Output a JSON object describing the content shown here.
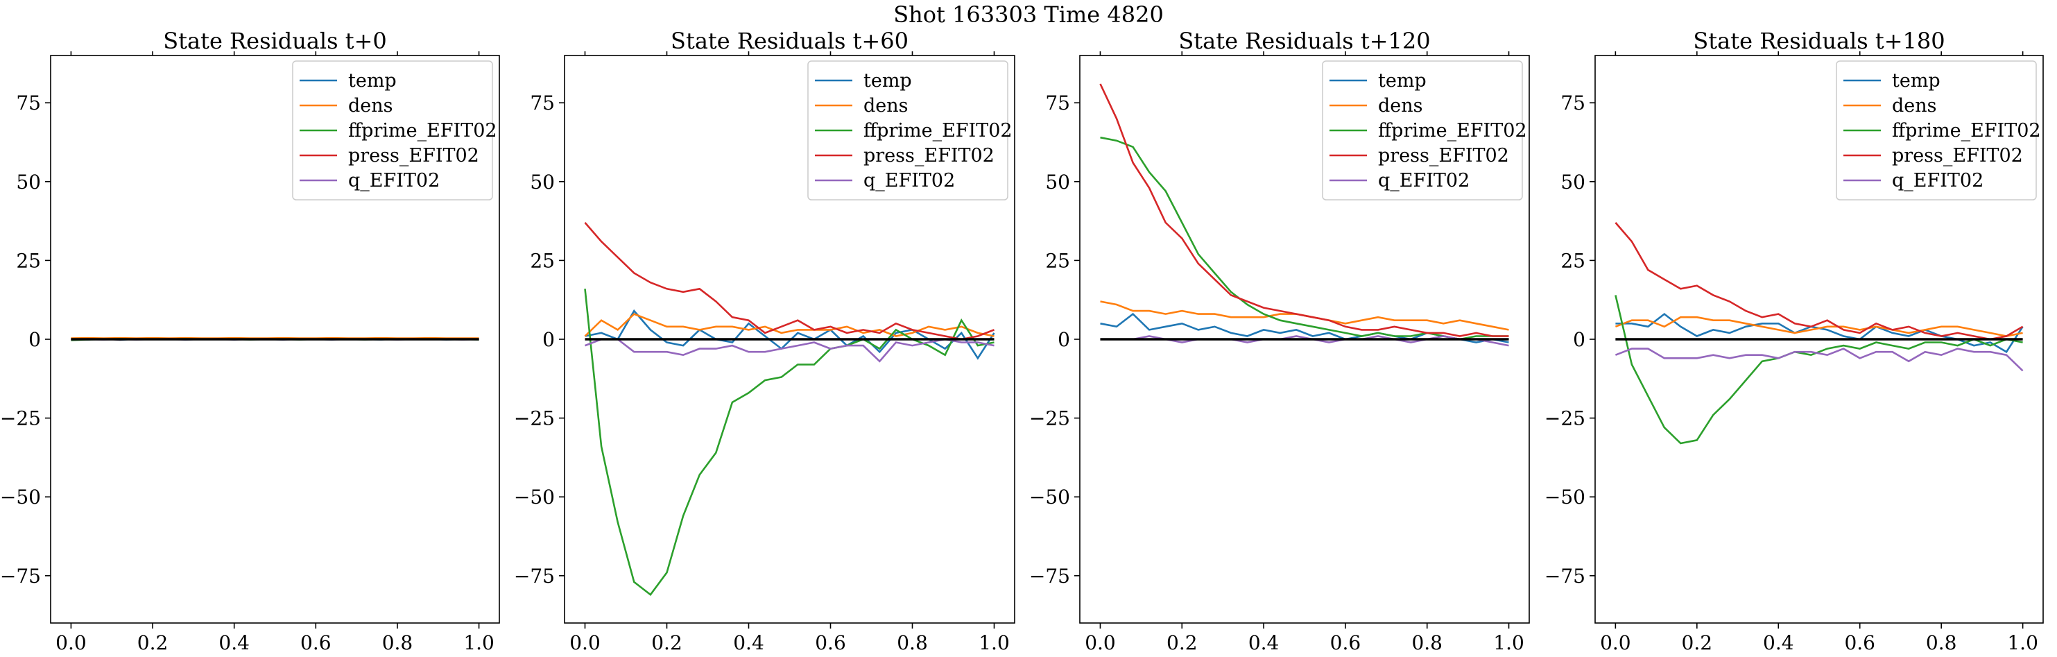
{
  "suptitle": "Shot 163303   Time 4820",
  "colors": {
    "temp": "#1f77b4",
    "dens": "#ff7f0e",
    "ffprime_EFIT02": "#2ca02c",
    "press_EFIT02": "#d62728",
    "q_EFIT02": "#9467bd",
    "zero_line": "#000000"
  },
  "chart_data": [
    {
      "type": "line",
      "title": "State Residuals t+0",
      "xlabel": "",
      "ylabel": "",
      "xlim": [
        -0.05,
        1.05
      ],
      "ylim": [
        -90,
        90
      ],
      "xticks": [
        "0.0",
        "0.2",
        "0.4",
        "0.6",
        "0.8",
        "1.0"
      ],
      "yticks": [
        "−75",
        "−50",
        "−25",
        "0",
        "25",
        "50",
        "75"
      ],
      "legend": {
        "placement": "top-right",
        "entries": [
          "temp",
          "dens",
          "ffprime_EFIT02",
          "press_EFIT02",
          "q_EFIT02"
        ]
      },
      "grid": false,
      "zero_line": true,
      "x": [
        0.0,
        0.04,
        0.08,
        0.12,
        0.16,
        0.2,
        0.24,
        0.28,
        0.32,
        0.36,
        0.4,
        0.44,
        0.48,
        0.52,
        0.56,
        0.6,
        0.64,
        0.68,
        0.72,
        0.76,
        0.8,
        0.84,
        0.88,
        0.92,
        0.96,
        1.0
      ],
      "series": [
        {
          "name": "temp",
          "values": [
            0.1,
            -0.1,
            0.2,
            -0.2,
            0.1,
            0.0,
            0.1,
            -0.1,
            0.0,
            0.1,
            -0.1,
            0.1,
            0.0,
            -0.1,
            0.1,
            0.0,
            -0.1,
            0.1,
            0.0,
            -0.1,
            0.1,
            0.0,
            0.1,
            -0.1,
            0.0,
            0.0
          ]
        },
        {
          "name": "dens",
          "values": [
            0.3,
            0.4,
            0.3,
            0.4,
            0.3,
            0.4,
            0.3,
            0.4,
            0.3,
            0.3,
            0.4,
            0.3,
            0.3,
            0.4,
            0.3,
            0.3,
            0.4,
            0.3,
            0.3,
            0.4,
            0.3,
            0.3,
            0.4,
            0.3,
            0.3,
            0.3
          ]
        },
        {
          "name": "ffprime_EFIT02",
          "values": [
            -0.3,
            -0.1,
            0.0,
            0.1,
            0.0,
            0.0,
            0.0,
            0.1,
            0.0,
            0.0,
            0.0,
            -0.1,
            0.0,
            0.0,
            -0.1,
            0.0,
            0.0,
            0.0,
            -0.1,
            0.0,
            0.0,
            0.0,
            0.0,
            0.0,
            0.0,
            -0.1
          ]
        },
        {
          "name": "press_EFIT02",
          "values": [
            0.0,
            0.1,
            0.0,
            -0.1,
            0.1,
            0.0,
            0.1,
            0.0,
            0.0,
            0.1,
            0.0,
            0.0,
            0.1,
            0.0,
            0.0,
            0.0,
            0.1,
            0.0,
            0.0,
            0.0,
            0.0,
            0.1,
            0.0,
            0.0,
            0.0,
            0.0
          ]
        },
        {
          "name": "q_EFIT02",
          "values": [
            -0.1,
            0.0,
            -0.1,
            0.0,
            -0.1,
            0.0,
            0.0,
            -0.1,
            0.0,
            0.0,
            -0.1,
            0.0,
            0.0,
            -0.1,
            0.0,
            0.0,
            -0.1,
            0.0,
            0.0,
            0.0,
            -0.1,
            0.0,
            0.0,
            0.0,
            -0.1,
            0.0
          ]
        }
      ]
    },
    {
      "type": "line",
      "title": "State Residuals t+60",
      "xlabel": "",
      "ylabel": "",
      "xlim": [
        -0.05,
        1.05
      ],
      "ylim": [
        -90,
        90
      ],
      "xticks": [
        "0.0",
        "0.2",
        "0.4",
        "0.6",
        "0.8",
        "1.0"
      ],
      "yticks": [
        "−75",
        "−50",
        "−25",
        "0",
        "25",
        "50",
        "75"
      ],
      "legend": {
        "placement": "top-right",
        "entries": [
          "temp",
          "dens",
          "ffprime_EFIT02",
          "press_EFIT02",
          "q_EFIT02"
        ]
      },
      "grid": false,
      "zero_line": true,
      "x": [
        0.0,
        0.04,
        0.08,
        0.12,
        0.16,
        0.2,
        0.24,
        0.28,
        0.32,
        0.36,
        0.4,
        0.44,
        0.48,
        0.52,
        0.56,
        0.6,
        0.64,
        0.68,
        0.72,
        0.76,
        0.8,
        0.84,
        0.88,
        0.92,
        0.96,
        1.0
      ],
      "series": [
        {
          "name": "temp",
          "values": [
            1,
            2,
            0,
            9,
            3,
            -1,
            -2,
            3,
            0,
            -1,
            5,
            1,
            -3,
            2,
            0,
            3,
            -2,
            1,
            -4,
            2,
            3,
            0,
            -3,
            2,
            -6,
            2
          ]
        },
        {
          "name": "dens",
          "values": [
            1,
            6,
            3,
            8,
            6,
            4,
            4,
            3,
            4,
            4,
            3,
            4,
            2,
            3,
            3,
            3,
            4,
            2,
            3,
            1,
            2,
            4,
            3,
            4,
            2,
            1
          ]
        },
        {
          "name": "ffprime_EFIT02",
          "values": [
            16,
            -34,
            -58,
            -77,
            -81,
            -74,
            -56,
            -43,
            -36,
            -20,
            -17,
            -13,
            -12,
            -8,
            -8,
            -3,
            -2,
            0,
            -3,
            3,
            0,
            -2,
            -5,
            6,
            -2,
            -1
          ]
        },
        {
          "name": "press_EFIT02",
          "values": [
            37,
            31,
            26,
            21,
            18,
            16,
            15,
            16,
            12,
            7,
            6,
            2,
            4,
            6,
            3,
            4,
            2,
            3,
            2,
            5,
            3,
            2,
            1,
            0,
            1,
            3
          ]
        },
        {
          "name": "q_EFIT02",
          "values": [
            -2,
            0,
            0,
            -4,
            -4,
            -4,
            -5,
            -3,
            -3,
            -2,
            -4,
            -4,
            -3,
            -2,
            -1,
            -3,
            -2,
            -2,
            -7,
            -1,
            -2,
            -1,
            0,
            -1,
            -1,
            -2
          ]
        }
      ]
    },
    {
      "type": "line",
      "title": "State Residuals t+120",
      "xlabel": "",
      "ylabel": "",
      "xlim": [
        -0.05,
        1.05
      ],
      "ylim": [
        -90,
        90
      ],
      "xticks": [
        "0.0",
        "0.2",
        "0.4",
        "0.6",
        "0.8",
        "1.0"
      ],
      "yticks": [
        "−75",
        "−50",
        "−25",
        "0",
        "25",
        "50",
        "75"
      ],
      "legend": {
        "placement": "top-right",
        "entries": [
          "temp",
          "dens",
          "ffprime_EFIT02",
          "press_EFIT02",
          "q_EFIT02"
        ]
      },
      "grid": false,
      "zero_line": true,
      "x": [
        0.0,
        0.04,
        0.08,
        0.12,
        0.16,
        0.2,
        0.24,
        0.28,
        0.32,
        0.36,
        0.4,
        0.44,
        0.48,
        0.52,
        0.56,
        0.6,
        0.64,
        0.68,
        0.72,
        0.76,
        0.8,
        0.84,
        0.88,
        0.92,
        0.96,
        1.0
      ],
      "series": [
        {
          "name": "temp",
          "values": [
            5,
            4,
            8,
            3,
            4,
            5,
            3,
            4,
            2,
            1,
            3,
            2,
            3,
            1,
            2,
            0,
            1,
            2,
            1,
            0,
            2,
            1,
            0,
            -1,
            0,
            -1
          ]
        },
        {
          "name": "dens",
          "values": [
            12,
            11,
            9,
            9,
            8,
            9,
            8,
            8,
            7,
            7,
            7,
            8,
            8,
            7,
            6,
            5,
            6,
            7,
            6,
            6,
            6,
            5,
            6,
            5,
            4,
            3
          ]
        },
        {
          "name": "ffprime_EFIT02",
          "values": [
            64,
            63,
            61,
            53,
            47,
            37,
            27,
            21,
            15,
            11,
            8,
            6,
            5,
            4,
            3,
            2,
            1,
            2,
            1,
            1,
            2,
            1,
            0,
            1,
            1,
            1
          ]
        },
        {
          "name": "press_EFIT02",
          "values": [
            81,
            70,
            56,
            48,
            37,
            32,
            24,
            19,
            14,
            12,
            10,
            9,
            8,
            7,
            6,
            4,
            3,
            3,
            4,
            3,
            2,
            2,
            1,
            2,
            1,
            1
          ]
        },
        {
          "name": "q_EFIT02",
          "values": [
            0,
            0,
            0,
            1,
            0,
            -1,
            0,
            0,
            0,
            -1,
            0,
            0,
            1,
            0,
            -1,
            0,
            0,
            1,
            0,
            -1,
            0,
            1,
            0,
            0,
            -1,
            -2
          ]
        }
      ]
    },
    {
      "type": "line",
      "title": "State Residuals t+180",
      "xlabel": "",
      "ylabel": "",
      "xlim": [
        -0.05,
        1.05
      ],
      "ylim": [
        -90,
        90
      ],
      "xticks": [
        "0.0",
        "0.2",
        "0.4",
        "0.6",
        "0.8",
        "1.0"
      ],
      "yticks": [
        "−75",
        "−50",
        "−25",
        "0",
        "25",
        "50",
        "75"
      ],
      "legend": {
        "placement": "top-right",
        "entries": [
          "temp",
          "dens",
          "ffprime_EFIT02",
          "press_EFIT02",
          "q_EFIT02"
        ]
      },
      "grid": false,
      "zero_line": true,
      "x": [
        0.0,
        0.04,
        0.08,
        0.12,
        0.16,
        0.2,
        0.24,
        0.28,
        0.32,
        0.36,
        0.4,
        0.44,
        0.48,
        0.52,
        0.56,
        0.6,
        0.64,
        0.68,
        0.72,
        0.76,
        0.8,
        0.84,
        0.88,
        0.92,
        0.96,
        1.0
      ],
      "series": [
        {
          "name": "temp",
          "values": [
            5,
            5,
            4,
            8,
            4,
            1,
            3,
            2,
            4,
            5,
            5,
            2,
            4,
            3,
            1,
            0,
            4,
            2,
            1,
            3,
            1,
            0,
            -2,
            -1,
            -4,
            4
          ]
        },
        {
          "name": "dens",
          "values": [
            4,
            6,
            6,
            4,
            7,
            7,
            6,
            6,
            5,
            4,
            3,
            2,
            3,
            4,
            4,
            3,
            4,
            3,
            2,
            3,
            4,
            4,
            3,
            2,
            1,
            2
          ]
        },
        {
          "name": "ffprime_EFIT02",
          "values": [
            14,
            -8,
            -18,
            -28,
            -33,
            -32,
            -24,
            -19,
            -13,
            -7,
            -6,
            -4,
            -5,
            -3,
            -2,
            -3,
            -1,
            -2,
            -3,
            -1,
            -1,
            -2,
            0,
            -2,
            0,
            -1
          ]
        },
        {
          "name": "press_EFIT02",
          "values": [
            37,
            31,
            22,
            19,
            16,
            17,
            14,
            12,
            9,
            7,
            8,
            5,
            4,
            6,
            3,
            2,
            5,
            3,
            4,
            2,
            1,
            2,
            1,
            0,
            1,
            4
          ]
        },
        {
          "name": "q_EFIT02",
          "values": [
            -5,
            -3,
            -3,
            -6,
            -6,
            -6,
            -5,
            -6,
            -5,
            -5,
            -6,
            -4,
            -4,
            -5,
            -3,
            -6,
            -4,
            -4,
            -7,
            -4,
            -5,
            -3,
            -4,
            -4,
            -5,
            -10
          ]
        }
      ]
    }
  ]
}
